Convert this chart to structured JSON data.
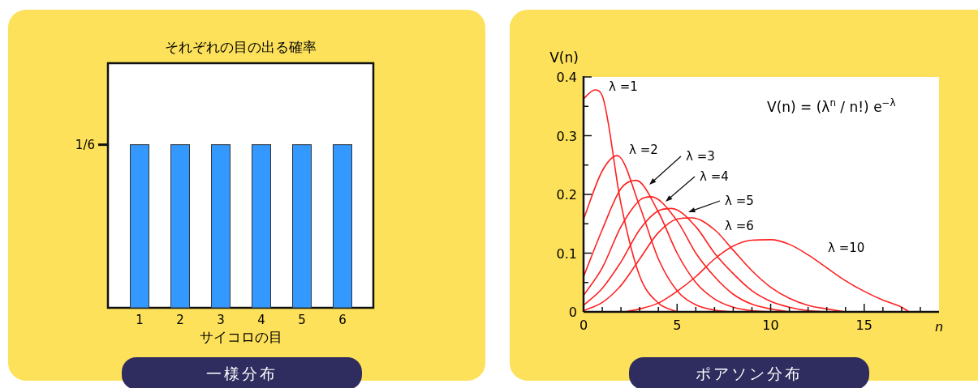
{
  "chart_data": [
    {
      "type": "bar",
      "title": "それぞれの目の出る確率",
      "xlabel": "サイコロの目",
      "categories": [
        "1",
        "2",
        "3",
        "4",
        "5",
        "6"
      ],
      "values": [
        0.1667,
        0.1667,
        0.1667,
        0.1667,
        0.1667,
        0.1667
      ],
      "color": "#3399ff",
      "ylim": [
        0,
        0.25
      ],
      "yticks": [
        {
          "value": 0.1667,
          "label": "1/6"
        }
      ],
      "annotations": [
        "一様分布"
      ]
    },
    {
      "type": "line",
      "xlabel": "n",
      "ylabel": "V(n)",
      "xlim": [
        0,
        19
      ],
      "xticks": [
        0,
        {
          "value": 1,
          "label": null
        },
        {
          "value": 2,
          "label": null
        },
        {
          "value": 3,
          "label": null
        },
        {
          "value": 4,
          "label": null
        },
        5,
        {
          "value": 6,
          "label": null
        },
        {
          "value": 7,
          "label": null
        },
        {
          "value": 8,
          "label": null
        },
        {
          "value": 9,
          "label": null
        },
        10,
        {
          "value": 11,
          "label": null
        },
        {
          "value": 12,
          "label": null
        },
        {
          "value": 13,
          "label": null
        },
        {
          "value": 14,
          "label": null
        },
        15,
        {
          "value": 16,
          "label": null
        },
        {
          "value": 17,
          "label": null
        },
        {
          "value": 18,
          "label": null
        }
      ],
      "ylim": [
        0,
        0.4
      ],
      "yticks": [
        0,
        {
          "value": 0.05,
          "label": null
        },
        0.1,
        {
          "value": 0.15,
          "label": null
        },
        0.2,
        {
          "value": 0.25,
          "label": null
        },
        0.3,
        {
          "value": 0.35,
          "label": null
        },
        0.4
      ],
      "series": [
        {
          "name": "λ =1",
          "color": "#ff2020",
          "x": [
            0,
            0.6,
            1,
            2,
            3,
            4,
            5
          ],
          "values": [
            0.363,
            0.378,
            0.368,
            0.184,
            0.061,
            0.015,
            0
          ]
        },
        {
          "name": "λ =2",
          "color": "#ff2020",
          "x": [
            0,
            1,
            1.8,
            3,
            4,
            5,
            6,
            7,
            8
          ],
          "values": [
            0.158,
            0.24,
            0.266,
            0.18,
            0.09,
            0.036,
            0.012,
            0.003,
            0
          ]
        },
        {
          "name": "λ =3",
          "color": "#ff2020",
          "x": [
            0,
            1,
            2,
            2.8,
            4,
            5,
            6,
            7,
            8,
            9,
            10
          ],
          "values": [
            0.06,
            0.14,
            0.21,
            0.224,
            0.17,
            0.1,
            0.05,
            0.022,
            0.008,
            0.002,
            0
          ]
        },
        {
          "name": "λ =4",
          "color": "#ff2020",
          "x": [
            0,
            1,
            2,
            3,
            3.6,
            5,
            6,
            7,
            8,
            9,
            10,
            11
          ],
          "values": [
            0.028,
            0.075,
            0.145,
            0.19,
            0.196,
            0.155,
            0.1,
            0.06,
            0.03,
            0.013,
            0.005,
            0
          ]
        },
        {
          "name": "λ =5",
          "color": "#ff2020",
          "x": [
            0,
            1,
            2,
            3,
            4,
            4.7,
            6,
            7,
            8,
            9,
            10,
            11,
            12,
            13
          ],
          "values": [
            0.011,
            0.04,
            0.085,
            0.14,
            0.172,
            0.176,
            0.145,
            0.1,
            0.065,
            0.036,
            0.018,
            0.008,
            0.002,
            0
          ]
        },
        {
          "name": "λ =6",
          "color": "#ff2020",
          "x": [
            0,
            1,
            2,
            3,
            4,
            5,
            5.8,
            7,
            8,
            9,
            10,
            11,
            12,
            13,
            14
          ],
          "values": [
            0.002,
            0.016,
            0.045,
            0.09,
            0.135,
            0.158,
            0.16,
            0.14,
            0.105,
            0.07,
            0.042,
            0.023,
            0.011,
            0.005,
            0
          ]
        },
        {
          "name": "λ =10",
          "color": "#ff2020",
          "x": [
            2.2,
            3,
            4,
            5,
            6,
            7,
            8,
            9,
            10,
            11,
            12,
            13,
            14,
            15,
            16,
            17,
            17.4
          ],
          "values": [
            0,
            0.005,
            0.015,
            0.035,
            0.06,
            0.09,
            0.112,
            0.122,
            0.123,
            0.115,
            0.097,
            0.075,
            0.053,
            0.035,
            0.02,
            0.008,
            0
          ]
        }
      ],
      "annotations": [
        "V(n) = (λ$^{n}$ / n!) e$^{−λ}$",
        "ポアソン分布"
      ]
    }
  ]
}
